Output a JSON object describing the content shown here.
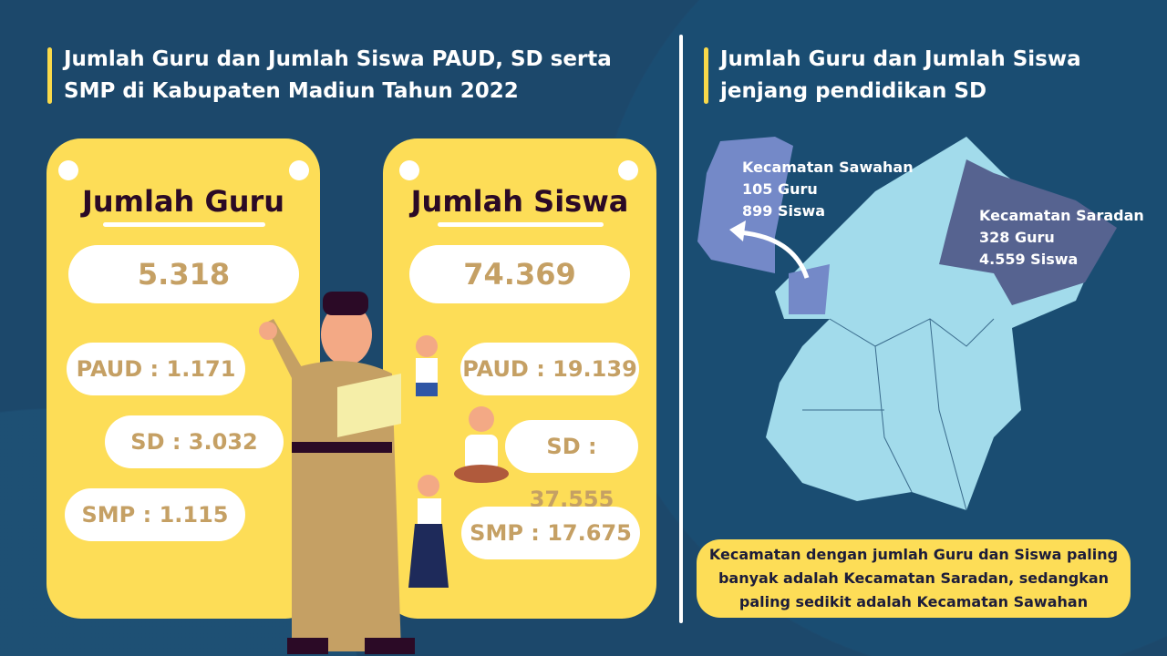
{
  "left_title": "Jumlah Guru dan Jumlah Siswa PAUD, SD serta SMP di Kabupaten Madiun Tahun 2022",
  "right_title": "Jumlah Guru dan Jumlah Siswa jenjang pendidikan SD",
  "guru_card": {
    "heading": "Jumlah Guru",
    "total": "5.318",
    "items": [
      "PAUD : 1.171",
      "SD : 3.032",
      "SMP : 1.115"
    ]
  },
  "siswa_card": {
    "heading": "Jumlah Siswa",
    "total": "74.369",
    "items": [
      "PAUD : 19.139",
      "SD : 37.555",
      "SMP : 17.675"
    ]
  },
  "map": {
    "sawahan": {
      "name": "Kecamatan Sawahan",
      "guru": "105 Guru",
      "siswa": "899 Siswa"
    },
    "saradan": {
      "name": "Kecamatan Saradan",
      "guru": "328 Guru",
      "siswa": "4.559 Siswa"
    },
    "colors": {
      "base": "#a2dbeb",
      "sawahan": "#7489c8",
      "saradan": "#566390"
    }
  },
  "conclusion": "Kecamatan dengan jumlah Guru dan Siswa paling banyak adalah Kecamatan Saradan, sedangkan paling sedikit adalah Kecamatan Sawahan"
}
